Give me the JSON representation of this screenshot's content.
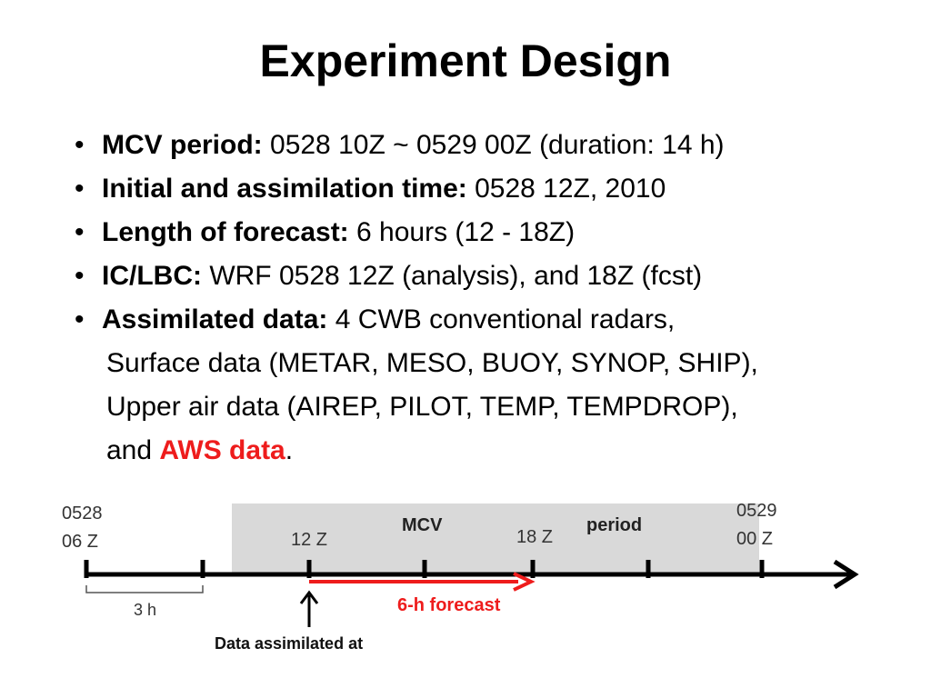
{
  "slide": {
    "title": "Experiment Design",
    "bullets": [
      {
        "label": "MCV period:",
        "text": " 0528 10Z ~ 0529 00Z (duration: 14 h)"
      },
      {
        "label": "Initial and assimilation time:",
        "text": " 0528 12Z, 2010"
      },
      {
        "label": "Length of forecast:",
        "text": " 6 hours (12 - 18Z)"
      },
      {
        "label": "IC/LBC:",
        "text": " WRF 0528 12Z (analysis), and 18Z (fcst)"
      },
      {
        "label": "Assimilated data:",
        "text": " 4 CWB conventional radars,",
        "line2": "Surface data (METAR, MESO, BUOY, SYNOP, SHIP),",
        "line3": "Upper air data (AIREP, PILOT, TEMP, TEMPDROP),",
        "line4_pre": "and ",
        "line4_highlight": "AWS data",
        "line4_post": "."
      }
    ]
  },
  "timeline": {
    "start_label_1": "0528",
    "start_label_2": "06 Z",
    "tick_12z": "12 Z",
    "tick_18z": "18 Z",
    "end_label_1": "0529",
    "end_label_2": "00 Z",
    "band_label_1": "MCV",
    "band_label_2": "period",
    "interval_label": "3 h",
    "forecast_label": "6-h forecast",
    "assim_label": "Data assimilated at",
    "colors": {
      "band": "#d9d9d9",
      "axis": "#000000",
      "forecast": "#ee1c1c",
      "text_gray": "#333333"
    }
  }
}
